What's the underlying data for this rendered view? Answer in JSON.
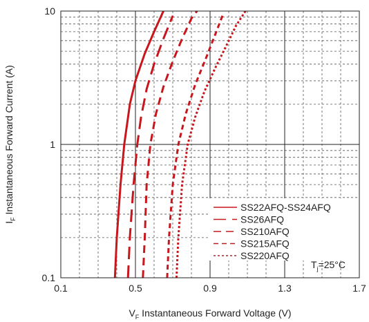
{
  "chart_data": {
    "type": "line",
    "title": "",
    "xlabel": {
      "prefix": "V",
      "sub": "F",
      "text": " Instantaneous Forward Voltage (V)"
    },
    "ylabel": {
      "prefix": "I",
      "sub": "F",
      "text": " Instantaneous Forward Current (A)"
    },
    "x_scale": "linear",
    "y_scale": "log",
    "xlim": [
      0.1,
      1.7
    ],
    "ylim": [
      0.1,
      10
    ],
    "x_ticks": [
      "0.1",
      "0.5",
      "0.9",
      "1.3",
      "1.7"
    ],
    "y_ticks": [
      "0.1",
      "1",
      "10"
    ],
    "grid": true,
    "legend_position": "bottom-right",
    "annotation": {
      "prefix": "T",
      "sub": "j",
      "text": "=25°C"
    },
    "series_color": "#c8161d",
    "series": [
      {
        "name": "SS22AFQ-SS24AFQ",
        "dash": "solid",
        "x": [
          0.39,
          0.4,
          0.42,
          0.44,
          0.47,
          0.5,
          0.55,
          0.6,
          0.65
        ],
        "y": [
          0.1,
          0.2,
          0.5,
          1.0,
          2.0,
          3.0,
          4.8,
          7.0,
          10.0
        ]
      },
      {
        "name": "SS26AFQ",
        "dash": "long",
        "x": [
          0.46,
          0.47,
          0.49,
          0.51,
          0.53,
          0.56,
          0.6,
          0.65,
          0.7
        ],
        "y": [
          0.1,
          0.2,
          0.5,
          1.0,
          1.6,
          2.6,
          4.0,
          6.2,
          9.2
        ]
      },
      {
        "name": "SS210AFQ",
        "dash": "medium",
        "x": [
          0.54,
          0.55,
          0.56,
          0.58,
          0.61,
          0.65,
          0.7,
          0.75,
          0.8,
          0.83
        ],
        "y": [
          0.1,
          0.2,
          0.5,
          1.0,
          1.7,
          2.7,
          4.2,
          6.2,
          8.8,
          10.0
        ]
      },
      {
        "name": "SS215AFQ",
        "dash": "short",
        "x": [
          0.67,
          0.68,
          0.7,
          0.73,
          0.77,
          0.82,
          0.88,
          0.93,
          0.97
        ],
        "y": [
          0.1,
          0.2,
          0.5,
          1.0,
          1.7,
          2.8,
          4.5,
          6.8,
          9.5
        ]
      },
      {
        "name": "SS220AFQ",
        "dash": "dotted",
        "x": [
          0.72,
          0.73,
          0.75,
          0.78,
          0.82,
          0.87,
          0.93,
          0.99,
          1.04,
          1.09
        ],
        "y": [
          0.1,
          0.2,
          0.5,
          1.0,
          1.6,
          2.5,
          3.8,
          5.6,
          7.8,
          10.0
        ]
      }
    ]
  }
}
